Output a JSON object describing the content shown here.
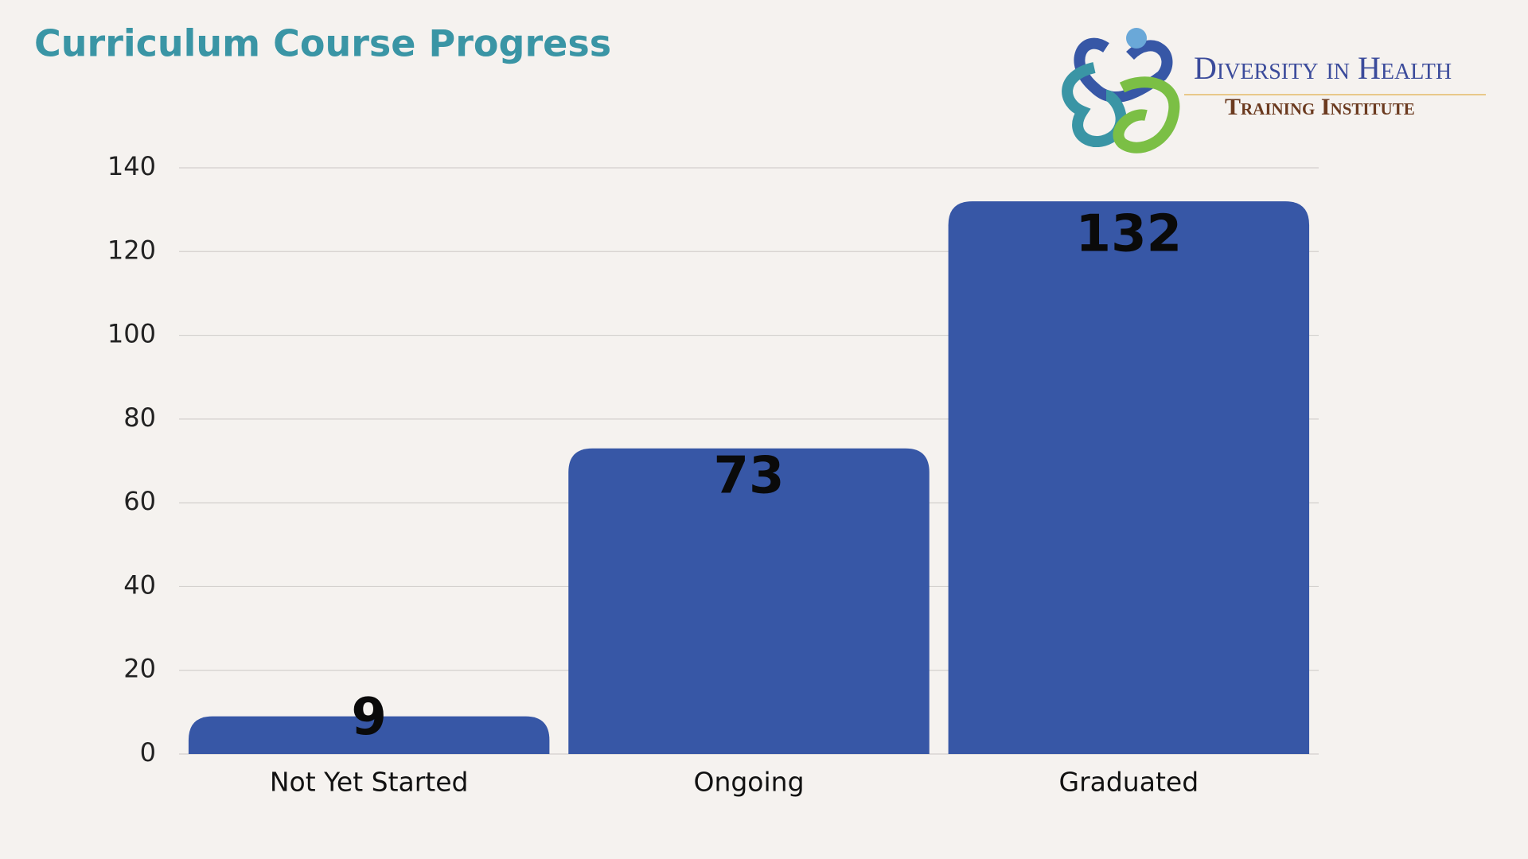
{
  "chart_data": {
    "type": "bar",
    "title": "Curriculum Course Progress",
    "logo": {
      "name": "Diversity in Health",
      "subtitle": "Training Institute"
    },
    "categories": [
      "Not Yet Started",
      "Ongoing",
      "Graduated"
    ],
    "values": [
      9,
      73,
      132
    ],
    "color": "#3757a6",
    "ylim": [
      0,
      140
    ],
    "yticks": [
      0,
      20,
      40,
      60,
      80,
      100,
      120,
      140
    ],
    "grid": true
  }
}
